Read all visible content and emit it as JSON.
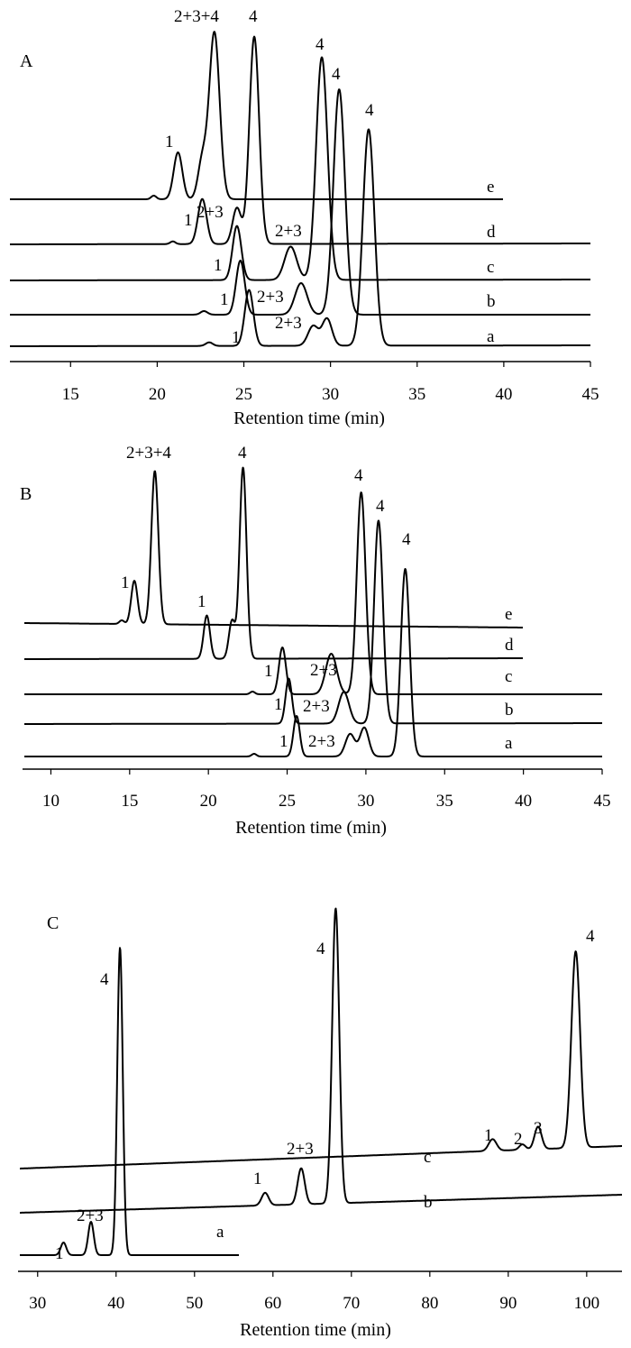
{
  "chart_data": [
    {
      "panel": "A",
      "type": "line",
      "xlabel": "Retention time (min)",
      "xlim": [
        11.5,
        45
      ],
      "xticks": [
        15,
        20,
        25,
        30,
        35,
        40,
        45
      ],
      "series": [
        {
          "name": "e",
          "peaks": [
            {
              "label": "1",
              "rt": 21.2,
              "height": 52,
              "width": 0.25
            },
            {
              "label": "",
              "rt": 22.6,
              "height": 42,
              "width": 0.25
            },
            {
              "label": "2+3+4",
              "rt": 23.3,
              "height": 185,
              "width": 0.3
            },
            {
              "label": "",
              "rt": 19.8,
              "height": 4,
              "width": 0.15
            }
          ]
        },
        {
          "name": "d",
          "peaks": [
            {
              "label": "1",
              "rt": 22.6,
              "height": 50,
              "width": 0.25
            },
            {
              "label": "2+3",
              "rt": 24.6,
              "height": 40,
              "width": 0.25
            },
            {
              "label": "4",
              "rt": 25.6,
              "height": 230,
              "width": 0.28
            },
            {
              "label": "",
              "rt": 20.9,
              "height": 3,
              "width": 0.15
            }
          ]
        },
        {
          "name": "c",
          "peaks": [
            {
              "label": "1",
              "rt": 24.6,
              "height": 60,
              "width": 0.25
            },
            {
              "label": "2+3",
              "rt": 27.7,
              "height": 37,
              "width": 0.35
            },
            {
              "label": "4",
              "rt": 29.5,
              "height": 247,
              "width": 0.33
            }
          ]
        },
        {
          "name": "b",
          "peaks": [
            {
              "label": "1",
              "rt": 24.8,
              "height": 60,
              "width": 0.25
            },
            {
              "label": "2+3",
              "rt": 28.3,
              "height": 35,
              "width": 0.35
            },
            {
              "label": "4",
              "rt": 30.5,
              "height": 250,
              "width": 0.33
            },
            {
              "label": "",
              "rt": 22.7,
              "height": 4,
              "width": 0.2
            }
          ]
        },
        {
          "name": "a",
          "peaks": [
            {
              "label": "1",
              "rt": 25.3,
              "height": 62,
              "width": 0.25
            },
            {
              "label": "2+3",
              "rt": 29.0,
              "height": 22,
              "width": 0.3
            },
            {
              "label": "",
              "rt": 29.8,
              "height": 30,
              "width": 0.28
            },
            {
              "label": "4",
              "rt": 32.2,
              "height": 240,
              "width": 0.33
            },
            {
              "label": "",
              "rt": 23.0,
              "height": 4,
              "width": 0.2
            }
          ]
        }
      ]
    },
    {
      "panel": "B",
      "type": "line",
      "xlabel": "Retention time (min)",
      "xlim": [
        8.2,
        45
      ],
      "xticks": [
        10,
        15,
        20,
        25,
        30,
        35,
        40,
        45
      ],
      "series": [
        {
          "name": "e",
          "peaks": [
            {
              "label": "1",
              "rt": 15.3,
              "height": 48,
              "width": 0.2
            },
            {
              "label": "2+3+4",
              "rt": 16.6,
              "height": 170,
              "width": 0.22
            },
            {
              "label": "",
              "rt": 14.5,
              "height": 4,
              "width": 0.15
            }
          ]
        },
        {
          "name": "d",
          "peaks": [
            {
              "label": "1",
              "rt": 19.9,
              "height": 48,
              "width": 0.2
            },
            {
              "label": "",
              "rt": 21.5,
              "height": 42,
              "width": 0.2
            },
            {
              "label": "4",
              "rt": 22.2,
              "height": 212,
              "width": 0.22
            }
          ]
        },
        {
          "name": "c",
          "peaks": [
            {
              "label": "1",
              "rt": 24.7,
              "height": 52,
              "width": 0.22
            },
            {
              "label": "2+3",
              "rt": 27.8,
              "height": 45,
              "width": 0.35
            },
            {
              "label": "4",
              "rt": 29.7,
              "height": 224,
              "width": 0.28
            },
            {
              "label": "",
              "rt": 22.8,
              "height": 3,
              "width": 0.15
            }
          ]
        },
        {
          "name": "b",
          "peaks": [
            {
              "label": "1",
              "rt": 25.1,
              "height": 50,
              "width": 0.2
            },
            {
              "label": "2+3",
              "rt": 28.6,
              "height": 35,
              "width": 0.33
            },
            {
              "label": "4",
              "rt": 30.8,
              "height": 225,
              "width": 0.28
            }
          ]
        },
        {
          "name": "a",
          "peaks": [
            {
              "label": "1",
              "rt": 25.6,
              "height": 45,
              "width": 0.2
            },
            {
              "label": "2+3",
              "rt": 29.0,
              "height": 25,
              "width": 0.3
            },
            {
              "label": "",
              "rt": 29.9,
              "height": 32,
              "width": 0.28
            },
            {
              "label": "4",
              "rt": 32.5,
              "height": 208,
              "width": 0.28
            },
            {
              "label": "",
              "rt": 22.9,
              "height": 3,
              "width": 0.15
            }
          ]
        }
      ]
    },
    {
      "panel": "C",
      "type": "line",
      "xlabel": "Retention time (min)",
      "xlim": [
        27.5,
        104.5
      ],
      "xticks": [
        30,
        40,
        50,
        60,
        70,
        80,
        90,
        100
      ],
      "series": [
        {
          "name": "c",
          "peaks": [
            {
              "label": "1",
              "rt": 88.0,
              "height": 13,
              "width": 0.5
            },
            {
              "label": "2",
              "rt": 91.8,
              "height": 6,
              "width": 0.4
            },
            {
              "label": "3",
              "rt": 93.8,
              "height": 25,
              "width": 0.45
            },
            {
              "label": "4",
              "rt": 98.6,
              "height": 218,
              "width": 0.55
            }
          ]
        },
        {
          "name": "b",
          "peaks": [
            {
              "label": "1",
              "rt": 59.0,
              "height": 14,
              "width": 0.45
            },
            {
              "label": "2+3",
              "rt": 63.6,
              "height": 40,
              "width": 0.45
            },
            {
              "label": "4",
              "rt": 68.0,
              "height": 327,
              "width": 0.45
            }
          ]
        },
        {
          "name": "a",
          "peaks": [
            {
              "label": "1",
              "rt": 33.3,
              "height": 14,
              "width": 0.35
            },
            {
              "label": "2+3",
              "rt": 36.8,
              "height": 37,
              "width": 0.35
            },
            {
              "label": "4",
              "rt": 40.5,
              "height": 341,
              "width": 0.35
            }
          ]
        }
      ]
    }
  ]
}
